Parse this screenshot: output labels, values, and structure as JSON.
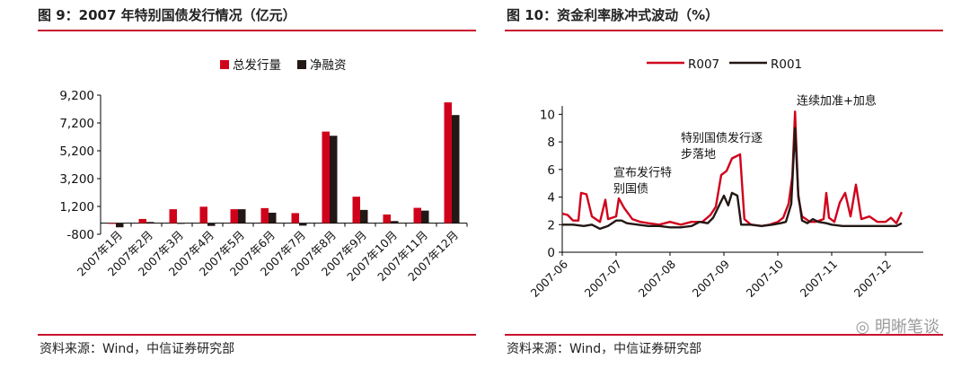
{
  "charts": [
    {
      "caption": "图 9：2007 年特别国债发行情况（亿元）",
      "source": "资料来源：Wind，中信证券研究部",
      "colors": {
        "total": "#d0021b",
        "net": "#231815",
        "rule": "#c8102e"
      }
    },
    {
      "caption": "图 10：资金利率脉冲式波动（%）",
      "source": "资料来源：Wind，中信证券研究部",
      "colors": {
        "R007": "#d0021b",
        "R001": "#231815"
      }
    }
  ],
  "watermark": "明晰笔谈",
  "chart_data": [
    {
      "type": "bar",
      "title": "",
      "categories": [
        "2007年1月",
        "2007年2月",
        "2007年3月",
        "2007年4月",
        "2007年5月",
        "2007年6月",
        "2007年7月",
        "2007年8月",
        "2007年9月",
        "2007年10月",
        "2007年11月",
        "2007年12月"
      ],
      "series": [
        {
          "name": "总发行量",
          "values": [
            0,
            300,
            1000,
            1180,
            1000,
            1080,
            720,
            6580,
            1900,
            620,
            1100,
            8680
          ]
        },
        {
          "name": "净融资",
          "values": [
            -300,
            80,
            -30,
            -200,
            1000,
            750,
            -180,
            6280,
            950,
            150,
            900,
            7770
          ]
        }
      ],
      "yticks": [
        "-800",
        "1,200",
        "3,200",
        "5,200",
        "7,200",
        "9,200"
      ],
      "ylim": [
        -800,
        9200
      ],
      "legend_position": "top-right",
      "grid": false
    },
    {
      "type": "line",
      "title": "",
      "xticks": [
        "2007-06",
        "2007-07",
        "2007-08",
        "2007-09",
        "2007-10",
        "2007-11",
        "2007-12"
      ],
      "yticks": [
        "0",
        "2",
        "4",
        "6",
        "8",
        "10"
      ],
      "ylim": [
        0,
        11
      ],
      "x_range_months": [
        0,
        6.7
      ],
      "legend_position": "top",
      "grid": false,
      "series": [
        {
          "name": "R007",
          "points": [
            [
              0,
              2.8
            ],
            [
              0.1,
              2.7
            ],
            [
              0.2,
              2.3
            ],
            [
              0.3,
              2.3
            ],
            [
              0.35,
              4.3
            ],
            [
              0.45,
              4.2
            ],
            [
              0.55,
              2.6
            ],
            [
              0.7,
              2.2
            ],
            [
              0.8,
              3.8
            ],
            [
              0.85,
              2.4
            ],
            [
              1.0,
              2.6
            ],
            [
              1.05,
              3.9
            ],
            [
              1.15,
              3.2
            ],
            [
              1.3,
              2.4
            ],
            [
              1.45,
              2.2
            ],
            [
              1.6,
              2.1
            ],
            [
              1.8,
              2.0
            ],
            [
              2.0,
              2.2
            ],
            [
              2.2,
              2.0
            ],
            [
              2.4,
              2.2
            ],
            [
              2.6,
              2.2
            ],
            [
              2.75,
              2.7
            ],
            [
              2.85,
              3.3
            ],
            [
              2.95,
              5.6
            ],
            [
              3.05,
              5.9
            ],
            [
              3.15,
              6.8
            ],
            [
              3.25,
              7.0
            ],
            [
              3.3,
              7.1
            ],
            [
              3.38,
              2.4
            ],
            [
              3.5,
              2.0
            ],
            [
              3.7,
              1.9
            ],
            [
              3.85,
              2.0
            ],
            [
              4.0,
              2.2
            ],
            [
              4.1,
              2.5
            ],
            [
              4.2,
              3.5
            ],
            [
              4.27,
              5.5
            ],
            [
              4.32,
              10.2
            ],
            [
              4.38,
              4.0
            ],
            [
              4.45,
              2.6
            ],
            [
              4.6,
              2.2
            ],
            [
              4.7,
              2.2
            ],
            [
              4.85,
              2.4
            ],
            [
              4.9,
              4.3
            ],
            [
              4.95,
              2.5
            ],
            [
              5.05,
              2.2
            ],
            [
              5.15,
              3.6
            ],
            [
              5.25,
              4.3
            ],
            [
              5.35,
              2.6
            ],
            [
              5.45,
              4.9
            ],
            [
              5.55,
              2.4
            ],
            [
              5.7,
              2.6
            ],
            [
              5.85,
              2.2
            ],
            [
              6.0,
              2.2
            ],
            [
              6.1,
              2.5
            ],
            [
              6.2,
              2.1
            ],
            [
              6.3,
              2.9
            ]
          ]
        },
        {
          "name": "R001",
          "points": [
            [
              0,
              2.0
            ],
            [
              0.2,
              2.0
            ],
            [
              0.4,
              1.9
            ],
            [
              0.55,
              2.0
            ],
            [
              0.7,
              1.7
            ],
            [
              0.85,
              1.9
            ],
            [
              1.0,
              2.3
            ],
            [
              1.1,
              2.3
            ],
            [
              1.2,
              2.1
            ],
            [
              1.4,
              2.0
            ],
            [
              1.6,
              1.9
            ],
            [
              1.8,
              1.9
            ],
            [
              2.0,
              1.8
            ],
            [
              2.2,
              1.8
            ],
            [
              2.4,
              1.9
            ],
            [
              2.55,
              2.2
            ],
            [
              2.7,
              2.1
            ],
            [
              2.8,
              2.5
            ],
            [
              2.9,
              3.3
            ],
            [
              3.0,
              4.1
            ],
            [
              3.08,
              3.4
            ],
            [
              3.15,
              4.3
            ],
            [
              3.25,
              4.1
            ],
            [
              3.32,
              2.0
            ],
            [
              3.5,
              2.0
            ],
            [
              3.7,
              1.9
            ],
            [
              3.9,
              2.0
            ],
            [
              4.05,
              2.1
            ],
            [
              4.15,
              2.2
            ],
            [
              4.25,
              3.5
            ],
            [
              4.32,
              9.0
            ],
            [
              4.38,
              4.2
            ],
            [
              4.45,
              2.3
            ],
            [
              4.55,
              2.1
            ],
            [
              4.65,
              2.4
            ],
            [
              4.75,
              2.2
            ],
            [
              4.9,
              2.1
            ],
            [
              5.0,
              2.0
            ],
            [
              5.2,
              1.9
            ],
            [
              5.4,
              1.9
            ],
            [
              5.6,
              1.9
            ],
            [
              5.8,
              1.9
            ],
            [
              6.0,
              1.9
            ],
            [
              6.2,
              1.9
            ],
            [
              6.3,
              2.1
            ]
          ]
        }
      ],
      "annotations": [
        {
          "lines": [
            "宣布发行特",
            "别国债"
          ],
          "at": [
            0.95,
            5.5
          ]
        },
        {
          "lines": [
            "特别国债发行逐",
            "步落地"
          ],
          "at": [
            2.2,
            8.0
          ]
        },
        {
          "lines": [
            "连续加准+加息"
          ],
          "at": [
            4.35,
            10.7
          ]
        }
      ]
    }
  ]
}
